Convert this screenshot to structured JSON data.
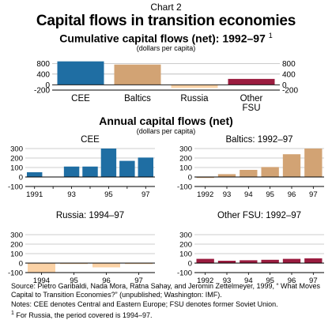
{
  "header": {
    "chart_label": "Chart 2",
    "title": "Capital flows in transition economies",
    "cumulative_title": "Cumulative capital flows (net): 1992–97",
    "cumulative_footnote_mark": "1",
    "cumulative_units": "(dollars per capita)",
    "annual_title": "Annual capital flows (net)",
    "annual_units": "(dollars per capita)"
  },
  "colors": {
    "cee": "#1f6ea3",
    "baltics": "#d2a374",
    "russia": "#fbd2a6",
    "other_fsu": "#9a1c3f",
    "grid": "#9a9a9a"
  },
  "chart_data": [
    {
      "id": "cumulative",
      "type": "bar",
      "categories": [
        "CEE",
        "Baltics",
        "Russia",
        "Other\nFSU"
      ],
      "values": [
        880,
        760,
        -120,
        220
      ],
      "yticks": [
        -200,
        0,
        400,
        800
      ],
      "ylim": [
        -200,
        900
      ],
      "colors": [
        "#1f6ea3",
        "#d2a374",
        "#fbd2a6",
        "#9a1c3f"
      ],
      "grid": true
    },
    {
      "id": "cee",
      "type": "bar",
      "title": "CEE",
      "x": [
        "1991",
        "1992",
        "1993",
        "1994",
        "1995",
        "1996",
        "1997"
      ],
      "xticklabels": [
        "1991",
        "",
        "93",
        "",
        "95",
        "",
        "97"
      ],
      "values": [
        50,
        0,
        110,
        110,
        300,
        170,
        205
      ],
      "yticks": [
        -100,
        0,
        100,
        200,
        300
      ],
      "ylim": [
        -100,
        300
      ],
      "color": "#1f6ea3",
      "grid": true
    },
    {
      "id": "baltics",
      "type": "bar",
      "title": "Baltics: 1992–97",
      "x": [
        "1992",
        "1993",
        "1994",
        "1995",
        "1996",
        "1997"
      ],
      "xticklabels": [
        "1992",
        "93",
        "94",
        "95",
        "96",
        "97"
      ],
      "values": [
        -10,
        30,
        75,
        105,
        240,
        300
      ],
      "yticks": [
        -100,
        0,
        100,
        200,
        300
      ],
      "ylim": [
        -100,
        300
      ],
      "color": "#d2a374",
      "grid": true
    },
    {
      "id": "russia",
      "type": "bar",
      "title": "Russia: 1994–97",
      "x": [
        "1994",
        "1995",
        "1996",
        "1997"
      ],
      "xticklabels": [
        "1994",
        "95",
        "96",
        "97"
      ],
      "values": [
        -95,
        -10,
        -45,
        -10
      ],
      "yticks": [
        -100,
        0,
        100,
        200,
        300
      ],
      "ylim": [
        -100,
        300
      ],
      "color": "#fbd2a6",
      "grid": true
    },
    {
      "id": "other_fsu",
      "type": "bar",
      "title": "Other FSU: 1992–97",
      "x": [
        "1992",
        "1993",
        "1994",
        "1995",
        "1996",
        "1997"
      ],
      "xticklabels": [
        "1992",
        "93",
        "94",
        "95",
        "96",
        "97"
      ],
      "values": [
        45,
        25,
        30,
        35,
        45,
        50
      ],
      "yticks": [
        -100,
        0,
        100,
        200,
        300
      ],
      "ylim": [
        -100,
        300
      ],
      "color": "#9a1c3f",
      "grid": true
    }
  ],
  "footer": {
    "source": "Source:  Pietro Garibaldi, Nada Mora, Ratna Sahay, and Jeromin Zettelmeyer, 1999, “ What Moves Capital to Transition Economies?” (unpublished; Washington: IMF).",
    "notes": "Notes: CEE denotes Central and Eastern Europe; FSU denotes former Soviet Union.",
    "footnote_mark": "1",
    "footnote": " For Russia, the period covered is 1994–97."
  }
}
